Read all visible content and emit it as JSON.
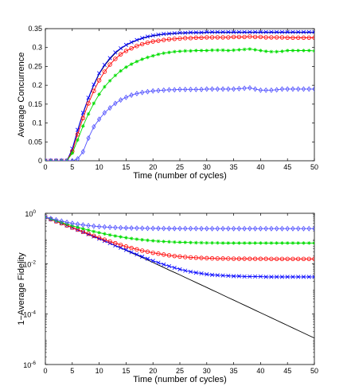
{
  "chart_data": [
    {
      "type": "line",
      "xlabel": "Time (number of cycles)",
      "ylabel": "Average Concurrence",
      "xlim": [
        0,
        50
      ],
      "ylim": [
        0,
        0.35
      ],
      "xscale": "linear",
      "yscale": "linear",
      "xticks": [
        0,
        5,
        10,
        15,
        20,
        25,
        30,
        35,
        40,
        45,
        50
      ],
      "yticks": [
        0,
        0.05,
        0.1,
        0.15,
        0.2,
        0.25,
        0.3,
        0.35
      ],
      "yticklabels": [
        "0",
        "0.05",
        "0.1",
        "0.15",
        "0.2",
        "0.25",
        "0.3",
        "0.35"
      ],
      "grid": false,
      "x": [
        0,
        1,
        2,
        3,
        4,
        5,
        6,
        7,
        8,
        9,
        10,
        11,
        12,
        13,
        14,
        15,
        16,
        17,
        18,
        19,
        20,
        21,
        22,
        23,
        24,
        25,
        26,
        27,
        28,
        29,
        30,
        31,
        32,
        33,
        34,
        35,
        36,
        37,
        38,
        39,
        40,
        41,
        42,
        43,
        44,
        45,
        46,
        47,
        48,
        49,
        50
      ],
      "series": [
        {
          "color": "#000000",
          "marker": "none",
          "values": [
            0,
            0,
            0,
            0,
            0,
            0.03,
            0.08,
            0.125,
            0.165,
            0.2,
            0.23,
            0.252,
            0.27,
            0.285,
            0.297,
            0.306,
            0.313,
            0.319,
            0.324,
            0.328,
            0.331,
            0.333,
            0.335,
            0.336,
            0.337,
            0.338,
            0.338,
            0.339,
            0.339,
            0.339,
            0.34,
            0.34,
            0.34,
            0.34,
            0.34,
            0.34,
            0.34,
            0.34,
            0.34,
            0.34,
            0.34,
            0.34,
            0.34,
            0.34,
            0.34,
            0.34,
            0.34,
            0.34,
            0.34,
            0.34,
            0.34
          ]
        },
        {
          "color": "#0000ff",
          "marker": "x",
          "values": [
            0,
            0,
            0,
            0,
            0,
            0.032,
            0.082,
            0.127,
            0.167,
            0.202,
            0.232,
            0.254,
            0.272,
            0.287,
            0.298,
            0.307,
            0.314,
            0.32,
            0.325,
            0.329,
            0.332,
            0.334,
            0.336,
            0.337,
            0.338,
            0.339,
            0.339,
            0.34,
            0.34,
            0.34,
            0.341,
            0.341,
            0.341,
            0.341,
            0.341,
            0.341,
            0.341,
            0.341,
            0.341,
            0.341,
            0.341,
            0.341,
            0.341,
            0.341,
            0.341,
            0.341,
            0.341,
            0.341,
            0.341,
            0.341,
            0.341
          ]
        },
        {
          "color": "#ff0000",
          "marker": "o",
          "values": [
            0,
            0,
            0,
            0,
            0,
            0.025,
            0.07,
            0.113,
            0.152,
            0.185,
            0.213,
            0.236,
            0.255,
            0.27,
            0.282,
            0.291,
            0.298,
            0.304,
            0.309,
            0.313,
            0.316,
            0.318,
            0.32,
            0.322,
            0.323,
            0.324,
            0.325,
            0.325,
            0.326,
            0.326,
            0.327,
            0.327,
            0.327,
            0.327,
            0.327,
            0.328,
            0.328,
            0.328,
            0.329,
            0.328,
            0.328,
            0.327,
            0.327,
            0.327,
            0.327,
            0.326,
            0.326,
            0.326,
            0.326,
            0.326,
            0.326
          ]
        },
        {
          "color": "#00dd00",
          "marker": "*",
          "values": [
            0,
            0,
            0,
            0,
            0,
            0.02,
            0.055,
            0.092,
            0.124,
            0.152,
            0.176,
            0.196,
            0.212,
            0.226,
            0.238,
            0.248,
            0.256,
            0.263,
            0.269,
            0.274,
            0.278,
            0.282,
            0.285,
            0.287,
            0.289,
            0.29,
            0.291,
            0.291,
            0.292,
            0.292,
            0.292,
            0.293,
            0.293,
            0.293,
            0.292,
            0.293,
            0.294,
            0.295,
            0.296,
            0.294,
            0.292,
            0.29,
            0.289,
            0.289,
            0.29,
            0.292,
            0.292,
            0.292,
            0.292,
            0.292,
            0.291
          ]
        },
        {
          "color": "#5050ff",
          "marker": "d",
          "values": [
            0,
            0,
            0,
            0,
            0,
            0,
            0.005,
            0.024,
            0.06,
            0.09,
            0.11,
            0.127,
            0.14,
            0.152,
            0.161,
            0.168,
            0.174,
            0.178,
            0.181,
            0.183,
            0.185,
            0.186,
            0.187,
            0.188,
            0.188,
            0.189,
            0.189,
            0.189,
            0.189,
            0.189,
            0.19,
            0.19,
            0.19,
            0.19,
            0.19,
            0.19,
            0.191,
            0.192,
            0.193,
            0.19,
            0.187,
            0.187,
            0.187,
            0.188,
            0.19,
            0.19,
            0.19,
            0.19,
            0.19,
            0.19,
            0.19
          ]
        }
      ]
    },
    {
      "type": "line",
      "xlabel": "Time (number of cycles)",
      "ylabel": "1−Average Fidelity",
      "xlim": [
        0,
        50
      ],
      "ylim": [
        1e-06,
        1
      ],
      "xscale": "linear",
      "yscale": "log",
      "xticks": [
        0,
        5,
        10,
        15,
        20,
        25,
        30,
        35,
        40,
        45,
        50
      ],
      "yticks": [
        1e-06,
        0.0001,
        0.01,
        1
      ],
      "ytick_base": "10",
      "ytick_exponents": [
        "-6",
        "-4",
        "-2",
        "0"
      ],
      "grid": false,
      "x": [
        0,
        1,
        2,
        3,
        4,
        5,
        6,
        7,
        8,
        9,
        10,
        11,
        12,
        13,
        14,
        15,
        16,
        17,
        18,
        19,
        20,
        21,
        22,
        23,
        24,
        25,
        26,
        27,
        28,
        29,
        30,
        31,
        32,
        33,
        34,
        35,
        36,
        37,
        38,
        39,
        40,
        41,
        42,
        43,
        44,
        45,
        46,
        47,
        48,
        49,
        50
      ],
      "series": [
        {
          "color": "#000000",
          "marker": "none",
          "values": [
            0.7,
            0.58,
            0.48,
            0.4,
            0.33,
            0.27,
            0.22,
            0.18,
            0.148,
            0.12,
            0.098,
            0.08,
            0.065,
            0.052,
            0.042,
            0.034,
            0.027,
            0.022,
            0.0175,
            0.014,
            0.0112,
            0.0089,
            0.0071,
            0.0056,
            0.0045,
            0.0036,
            0.00285,
            0.00227,
            0.0018,
            0.00143,
            0.00114,
            0.0009,
            0.00072,
            0.00057,
            0.00045,
            0.00036,
            0.000285,
            0.000226,
            0.00018,
            0.000142,
            0.000113,
            9e-05,
            7.13e-05,
            5.66e-05,
            4.49e-05,
            3.56e-05,
            2.83e-05,
            2.24e-05,
            1.78e-05,
            1.41e-05,
            1.12e-05
          ]
        },
        {
          "color": "#0000ff",
          "marker": "x",
          "values": [
            0.7,
            0.58,
            0.48,
            0.4,
            0.33,
            0.27,
            0.22,
            0.18,
            0.148,
            0.12,
            0.098,
            0.08,
            0.065,
            0.053,
            0.043,
            0.035,
            0.0285,
            0.0233,
            0.019,
            0.0157,
            0.013,
            0.011,
            0.0093,
            0.008,
            0.0069,
            0.006,
            0.0053,
            0.0048,
            0.0044,
            0.0041,
            0.0038,
            0.0036,
            0.0035,
            0.0034,
            0.0033,
            0.0032,
            0.0032,
            0.0031,
            0.0031,
            0.0031,
            0.0031,
            0.003,
            0.003,
            0.003,
            0.003,
            0.003,
            0.003,
            0.003,
            0.003,
            0.003,
            0.003
          ]
        },
        {
          "color": "#ff0000",
          "marker": "o",
          "values": [
            0.7,
            0.58,
            0.48,
            0.4,
            0.33,
            0.27,
            0.225,
            0.185,
            0.155,
            0.128,
            0.107,
            0.09,
            0.076,
            0.065,
            0.056,
            0.048,
            0.042,
            0.037,
            0.033,
            0.03,
            0.027,
            0.025,
            0.023,
            0.0215,
            0.0202,
            0.0192,
            0.0184,
            0.0178,
            0.0173,
            0.0169,
            0.0166,
            0.0163,
            0.0161,
            0.016,
            0.0159,
            0.0158,
            0.0157,
            0.0157,
            0.0156,
            0.0156,
            0.0156,
            0.0156,
            0.0155,
            0.0155,
            0.0155,
            0.0155,
            0.0155,
            0.0155,
            0.0155,
            0.0155,
            0.0155
          ]
        },
        {
          "color": "#00dd00",
          "marker": "*",
          "values": [
            0.7,
            0.59,
            0.5,
            0.43,
            0.37,
            0.32,
            0.28,
            0.245,
            0.215,
            0.19,
            0.17,
            0.153,
            0.138,
            0.126,
            0.116,
            0.107,
            0.1,
            0.094,
            0.089,
            0.085,
            0.081,
            0.078,
            0.076,
            0.074,
            0.072,
            0.071,
            0.07,
            0.069,
            0.068,
            0.068,
            0.067,
            0.067,
            0.067,
            0.066,
            0.066,
            0.066,
            0.066,
            0.066,
            0.066,
            0.066,
            0.066,
            0.066,
            0.066,
            0.066,
            0.066,
            0.066,
            0.066,
            0.066,
            0.066,
            0.066,
            0.066
          ]
        },
        {
          "color": "#5050ff",
          "marker": "d",
          "values": [
            0.7,
            0.62,
            0.55,
            0.49,
            0.44,
            0.4,
            0.37,
            0.345,
            0.325,
            0.31,
            0.297,
            0.287,
            0.279,
            0.272,
            0.267,
            0.263,
            0.26,
            0.257,
            0.255,
            0.253,
            0.252,
            0.251,
            0.25,
            0.249,
            0.249,
            0.248,
            0.248,
            0.248,
            0.248,
            0.247,
            0.247,
            0.247,
            0.247,
            0.247,
            0.247,
            0.247,
            0.247,
            0.247,
            0.247,
            0.247,
            0.247,
            0.247,
            0.247,
            0.247,
            0.247,
            0.247,
            0.247,
            0.247,
            0.247,
            0.247,
            0.247
          ]
        }
      ]
    }
  ]
}
